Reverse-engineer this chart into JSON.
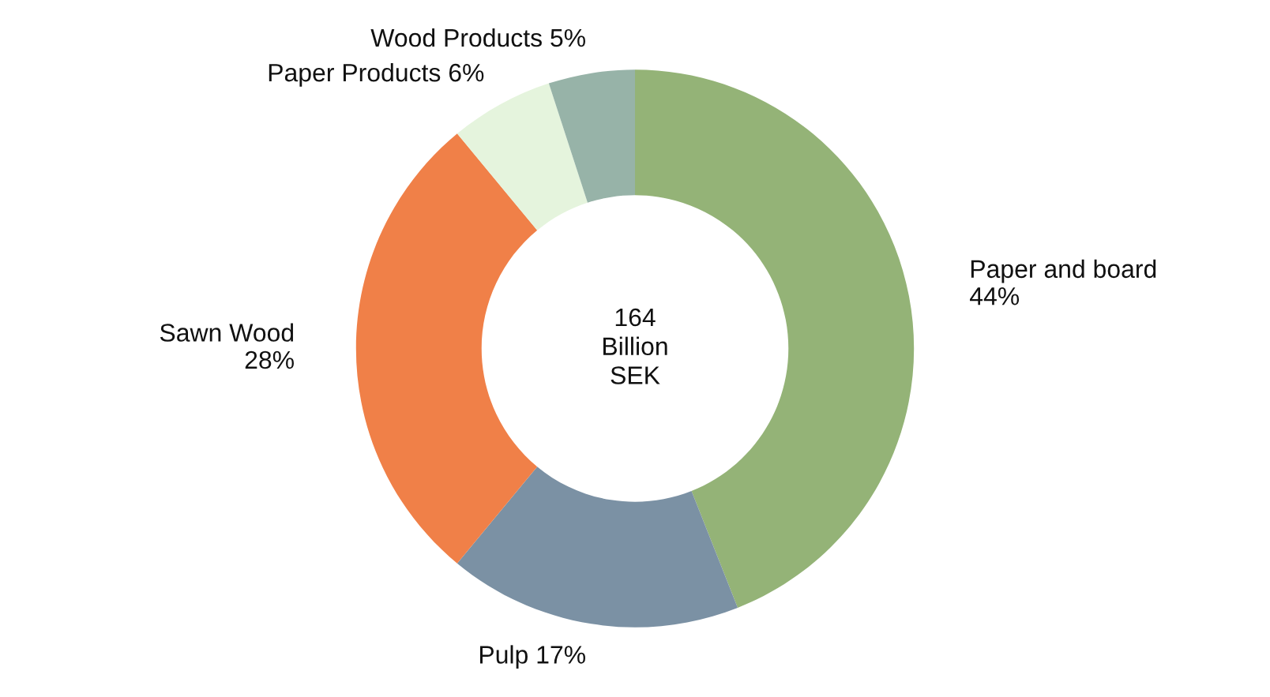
{
  "chart_data": {
    "type": "donut",
    "categories": [
      "Paper and board",
      "Pulp",
      "Sawn Wood",
      "Paper Products",
      "Wood Products"
    ],
    "values": [
      44,
      17,
      28,
      6,
      5
    ],
    "value_labels": [
      "44%",
      "17%",
      "28%",
      "6%",
      "5%"
    ],
    "colors": [
      "#94b377",
      "#7b91a4",
      "#f08048",
      "#e5f4dd",
      "#97b3a8"
    ],
    "annotations": [
      "164\nBillion\nSEK"
    ]
  }
}
